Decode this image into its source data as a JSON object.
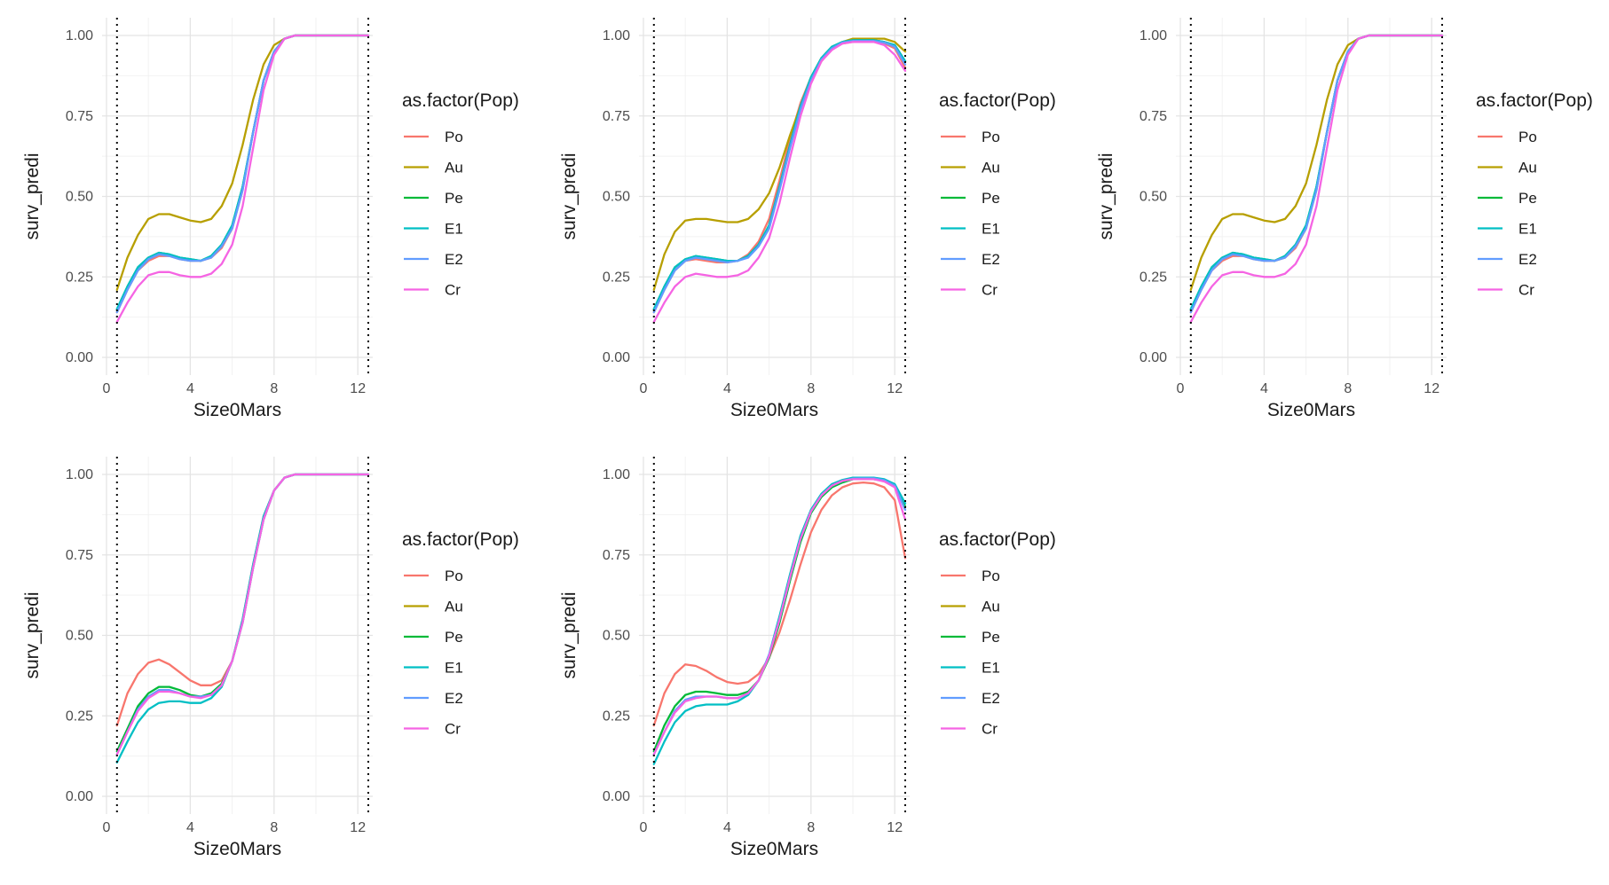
{
  "figure": {
    "legend_title": "as.factor(Pop)",
    "legend_entries": [
      "Po",
      "Au",
      "Pe",
      "E1",
      "E2",
      "Cr"
    ],
    "colors": {
      "Po": "#F8766D",
      "Au": "#B79F00",
      "Pe": "#00BA38",
      "E1": "#00BFC4",
      "E2": "#619CFF",
      "Cr": "#F564E3"
    }
  },
  "chart_data": [
    {
      "type": "line",
      "xlabel": "Size0Mars",
      "ylabel": "surv_predi",
      "xlim": [
        0,
        12.5
      ],
      "ylim": [
        0,
        1
      ],
      "xticks": [
        "0",
        "4",
        "8",
        "12"
      ],
      "yticks": [
        "0.00",
        "0.25",
        "0.50",
        "0.75",
        "1.00"
      ],
      "vlines": [
        0.5,
        12.5
      ],
      "grid": true,
      "legend_position": "right",
      "x": [
        0.5,
        1,
        1.5,
        2,
        2.5,
        3,
        3.5,
        4,
        4.5,
        5,
        5.5,
        6,
        6.5,
        7,
        7.5,
        8,
        8.5,
        9,
        9.5,
        10,
        11,
        12,
        12.5
      ],
      "series": [
        {
          "name": "Po",
          "values": [
            0.14,
            0.21,
            0.27,
            0.3,
            0.315,
            0.315,
            0.305,
            0.3,
            0.3,
            0.31,
            0.34,
            0.4,
            0.52,
            0.7,
            0.86,
            0.95,
            0.99,
            1.0,
            1.0,
            1.0,
            1.0,
            1.0,
            1.0
          ]
        },
        {
          "name": "Au",
          "values": [
            0.21,
            0.31,
            0.38,
            0.43,
            0.445,
            0.445,
            0.435,
            0.425,
            0.42,
            0.43,
            0.47,
            0.54,
            0.66,
            0.8,
            0.91,
            0.97,
            0.99,
            1.0,
            1.0,
            1.0,
            1.0,
            1.0,
            1.0
          ]
        },
        {
          "name": "Pe",
          "values": [
            0.15,
            0.22,
            0.28,
            0.31,
            0.325,
            0.32,
            0.31,
            0.305,
            0.3,
            0.315,
            0.35,
            0.41,
            0.53,
            0.7,
            0.86,
            0.95,
            0.99,
            1.0,
            1.0,
            1.0,
            1.0,
            1.0,
            1.0
          ]
        },
        {
          "name": "E1",
          "values": [
            0.15,
            0.22,
            0.28,
            0.31,
            0.325,
            0.32,
            0.31,
            0.305,
            0.3,
            0.315,
            0.35,
            0.41,
            0.53,
            0.7,
            0.86,
            0.95,
            0.99,
            1.0,
            1.0,
            1.0,
            1.0,
            1.0,
            1.0
          ]
        },
        {
          "name": "E2",
          "values": [
            0.14,
            0.21,
            0.27,
            0.305,
            0.32,
            0.315,
            0.305,
            0.3,
            0.3,
            0.31,
            0.345,
            0.4,
            0.52,
            0.7,
            0.86,
            0.95,
            0.99,
            1.0,
            1.0,
            1.0,
            1.0,
            1.0,
            1.0
          ]
        },
        {
          "name": "Cr",
          "values": [
            0.11,
            0.17,
            0.22,
            0.255,
            0.265,
            0.265,
            0.255,
            0.25,
            0.25,
            0.26,
            0.29,
            0.35,
            0.47,
            0.65,
            0.83,
            0.94,
            0.99,
            1.0,
            1.0,
            1.0,
            1.0,
            1.0,
            1.0
          ]
        }
      ]
    },
    {
      "type": "line",
      "xlabel": "Size0Mars",
      "ylabel": "surv_predi",
      "xlim": [
        0,
        12.5
      ],
      "ylim": [
        0,
        1
      ],
      "xticks": [
        "0",
        "4",
        "8",
        "12"
      ],
      "yticks": [
        "0.00",
        "0.25",
        "0.50",
        "0.75",
        "1.00"
      ],
      "vlines": [
        0.5,
        12.5
      ],
      "grid": true,
      "legend_position": "right",
      "x": [
        0.5,
        1,
        1.5,
        2,
        2.5,
        3,
        3.5,
        4,
        4.5,
        5,
        5.5,
        6,
        6.5,
        7,
        7.5,
        8,
        8.5,
        9,
        9.5,
        10,
        10.5,
        11,
        11.5,
        12,
        12.5
      ],
      "series": [
        {
          "name": "Po",
          "values": [
            0.14,
            0.21,
            0.27,
            0.3,
            0.305,
            0.3,
            0.295,
            0.295,
            0.3,
            0.32,
            0.36,
            0.43,
            0.55,
            0.68,
            0.79,
            0.87,
            0.93,
            0.96,
            0.975,
            0.98,
            0.98,
            0.98,
            0.975,
            0.96,
            0.9
          ]
        },
        {
          "name": "Au",
          "values": [
            0.21,
            0.32,
            0.39,
            0.425,
            0.43,
            0.43,
            0.425,
            0.42,
            0.42,
            0.43,
            0.46,
            0.51,
            0.59,
            0.69,
            0.78,
            0.86,
            0.92,
            0.96,
            0.98,
            0.99,
            0.99,
            0.99,
            0.99,
            0.98,
            0.95
          ]
        },
        {
          "name": "Pe",
          "values": [
            0.15,
            0.22,
            0.28,
            0.305,
            0.315,
            0.31,
            0.305,
            0.3,
            0.3,
            0.315,
            0.35,
            0.41,
            0.53,
            0.66,
            0.78,
            0.87,
            0.93,
            0.965,
            0.98,
            0.985,
            0.985,
            0.985,
            0.98,
            0.97,
            0.92
          ]
        },
        {
          "name": "E1",
          "values": [
            0.15,
            0.22,
            0.28,
            0.305,
            0.315,
            0.31,
            0.305,
            0.3,
            0.3,
            0.315,
            0.35,
            0.41,
            0.53,
            0.66,
            0.78,
            0.87,
            0.93,
            0.965,
            0.98,
            0.985,
            0.985,
            0.985,
            0.98,
            0.97,
            0.92
          ]
        },
        {
          "name": "E2",
          "values": [
            0.14,
            0.21,
            0.27,
            0.3,
            0.31,
            0.305,
            0.3,
            0.295,
            0.3,
            0.31,
            0.345,
            0.4,
            0.52,
            0.65,
            0.77,
            0.86,
            0.925,
            0.96,
            0.978,
            0.983,
            0.983,
            0.983,
            0.978,
            0.965,
            0.91
          ]
        },
        {
          "name": "Cr",
          "values": [
            0.11,
            0.17,
            0.22,
            0.25,
            0.26,
            0.255,
            0.25,
            0.25,
            0.255,
            0.27,
            0.31,
            0.37,
            0.48,
            0.62,
            0.75,
            0.85,
            0.92,
            0.955,
            0.975,
            0.98,
            0.98,
            0.98,
            0.97,
            0.94,
            0.89
          ]
        }
      ]
    },
    {
      "type": "line",
      "xlabel": "Size0Mars",
      "ylabel": "surv_predi",
      "xlim": [
        0,
        12.5
      ],
      "ylim": [
        0,
        1
      ],
      "xticks": [
        "0",
        "4",
        "8",
        "12"
      ],
      "yticks": [
        "0.00",
        "0.25",
        "0.50",
        "0.75",
        "1.00"
      ],
      "vlines": [
        0.5,
        12.5
      ],
      "grid": true,
      "legend_position": "right",
      "x": [
        0.5,
        1,
        1.5,
        2,
        2.5,
        3,
        3.5,
        4,
        4.5,
        5,
        5.5,
        6,
        6.5,
        7,
        7.5,
        8,
        8.5,
        9,
        9.5,
        10,
        11,
        12,
        12.5
      ],
      "series": [
        {
          "name": "Po",
          "values": [
            0.14,
            0.21,
            0.27,
            0.3,
            0.315,
            0.315,
            0.305,
            0.3,
            0.3,
            0.31,
            0.34,
            0.4,
            0.52,
            0.7,
            0.86,
            0.95,
            0.99,
            1.0,
            1.0,
            1.0,
            1.0,
            1.0,
            1.0
          ]
        },
        {
          "name": "Au",
          "values": [
            0.21,
            0.31,
            0.38,
            0.43,
            0.445,
            0.445,
            0.435,
            0.425,
            0.42,
            0.43,
            0.47,
            0.54,
            0.66,
            0.8,
            0.91,
            0.97,
            0.99,
            1.0,
            1.0,
            1.0,
            1.0,
            1.0,
            1.0
          ]
        },
        {
          "name": "Pe",
          "values": [
            0.15,
            0.22,
            0.28,
            0.31,
            0.325,
            0.32,
            0.31,
            0.305,
            0.3,
            0.315,
            0.35,
            0.41,
            0.53,
            0.7,
            0.86,
            0.95,
            0.99,
            1.0,
            1.0,
            1.0,
            1.0,
            1.0,
            1.0
          ]
        },
        {
          "name": "E1",
          "values": [
            0.15,
            0.22,
            0.28,
            0.31,
            0.325,
            0.32,
            0.31,
            0.305,
            0.3,
            0.315,
            0.35,
            0.41,
            0.53,
            0.7,
            0.86,
            0.95,
            0.99,
            1.0,
            1.0,
            1.0,
            1.0,
            1.0,
            1.0
          ]
        },
        {
          "name": "E2",
          "values": [
            0.14,
            0.21,
            0.27,
            0.305,
            0.32,
            0.315,
            0.305,
            0.3,
            0.3,
            0.31,
            0.345,
            0.4,
            0.52,
            0.7,
            0.86,
            0.95,
            0.99,
            1.0,
            1.0,
            1.0,
            1.0,
            1.0,
            1.0
          ]
        },
        {
          "name": "Cr",
          "values": [
            0.11,
            0.17,
            0.22,
            0.255,
            0.265,
            0.265,
            0.255,
            0.25,
            0.25,
            0.26,
            0.29,
            0.35,
            0.47,
            0.65,
            0.83,
            0.94,
            0.99,
            1.0,
            1.0,
            1.0,
            1.0,
            1.0,
            1.0
          ]
        }
      ]
    },
    {
      "type": "line",
      "xlabel": "Size0Mars",
      "ylabel": "surv_predi",
      "xlim": [
        0,
        12.5
      ],
      "ylim": [
        0,
        1
      ],
      "xticks": [
        "0",
        "4",
        "8",
        "12"
      ],
      "yticks": [
        "0.00",
        "0.25",
        "0.50",
        "0.75",
        "1.00"
      ],
      "vlines": [
        0.5,
        12.5
      ],
      "grid": true,
      "legend_position": "right",
      "x": [
        0.5,
        1,
        1.5,
        2,
        2.5,
        3,
        3.5,
        4,
        4.5,
        5,
        5.5,
        6,
        6.5,
        7,
        7.5,
        8,
        8.5,
        9,
        9.5,
        10,
        11,
        12,
        12.5
      ],
      "series": [
        {
          "name": "Po",
          "values": [
            0.22,
            0.32,
            0.38,
            0.415,
            0.425,
            0.41,
            0.385,
            0.36,
            0.345,
            0.345,
            0.36,
            0.42,
            0.55,
            0.72,
            0.87,
            0.95,
            0.99,
            1.0,
            1.0,
            1.0,
            1.0,
            1.0,
            1.0
          ]
        },
        {
          "name": "Pe",
          "values": [
            0.14,
            0.21,
            0.28,
            0.32,
            0.34,
            0.34,
            0.33,
            0.315,
            0.31,
            0.32,
            0.35,
            0.42,
            0.54,
            0.71,
            0.86,
            0.95,
            0.99,
            1.0,
            1.0,
            1.0,
            1.0,
            1.0,
            1.0
          ]
        },
        {
          "name": "E1",
          "values": [
            0.105,
            0.17,
            0.23,
            0.27,
            0.29,
            0.295,
            0.295,
            0.29,
            0.29,
            0.305,
            0.34,
            0.42,
            0.55,
            0.72,
            0.87,
            0.95,
            0.99,
            1.0,
            1.0,
            1.0,
            1.0,
            1.0,
            1.0
          ]
        },
        {
          "name": "E2",
          "values": [
            0.13,
            0.2,
            0.27,
            0.31,
            0.33,
            0.33,
            0.32,
            0.31,
            0.31,
            0.315,
            0.345,
            0.42,
            0.54,
            0.71,
            0.86,
            0.95,
            0.99,
            1.0,
            1.0,
            1.0,
            1.0,
            1.0,
            1.0
          ]
        },
        {
          "name": "Cr",
          "values": [
            0.13,
            0.2,
            0.265,
            0.305,
            0.325,
            0.325,
            0.32,
            0.31,
            0.305,
            0.315,
            0.345,
            0.42,
            0.54,
            0.71,
            0.86,
            0.95,
            0.99,
            1.0,
            1.0,
            1.0,
            1.0,
            1.0,
            1.0
          ]
        }
      ]
    },
    {
      "type": "line",
      "xlabel": "Size0Mars",
      "ylabel": "surv_predi",
      "xlim": [
        0,
        12.5
      ],
      "ylim": [
        0,
        1
      ],
      "xticks": [
        "0",
        "4",
        "8",
        "12"
      ],
      "yticks": [
        "0.00",
        "0.25",
        "0.50",
        "0.75",
        "1.00"
      ],
      "vlines": [
        0.5,
        12.5
      ],
      "grid": true,
      "legend_position": "right",
      "x": [
        0.5,
        1,
        1.5,
        2,
        2.5,
        3,
        3.5,
        4,
        4.5,
        5,
        5.5,
        6,
        6.5,
        7,
        7.5,
        8,
        8.5,
        9,
        9.5,
        10,
        10.5,
        11,
        11.5,
        12,
        12.5
      ],
      "series": [
        {
          "name": "Po",
          "values": [
            0.22,
            0.32,
            0.38,
            0.41,
            0.405,
            0.39,
            0.37,
            0.355,
            0.35,
            0.355,
            0.38,
            0.43,
            0.51,
            0.61,
            0.72,
            0.82,
            0.89,
            0.935,
            0.96,
            0.972,
            0.975,
            0.972,
            0.96,
            0.92,
            0.74
          ]
        },
        {
          "name": "Pe",
          "values": [
            0.14,
            0.22,
            0.28,
            0.315,
            0.325,
            0.325,
            0.32,
            0.315,
            0.315,
            0.325,
            0.36,
            0.43,
            0.54,
            0.67,
            0.79,
            0.88,
            0.93,
            0.96,
            0.975,
            0.985,
            0.985,
            0.985,
            0.98,
            0.965,
            0.9
          ]
        },
        {
          "name": "E1",
          "values": [
            0.1,
            0.17,
            0.23,
            0.265,
            0.28,
            0.285,
            0.285,
            0.285,
            0.295,
            0.315,
            0.36,
            0.44,
            0.56,
            0.69,
            0.81,
            0.89,
            0.94,
            0.97,
            0.983,
            0.99,
            0.99,
            0.99,
            0.985,
            0.97,
            0.91
          ]
        },
        {
          "name": "E2",
          "values": [
            0.13,
            0.2,
            0.265,
            0.3,
            0.31,
            0.31,
            0.31,
            0.305,
            0.305,
            0.32,
            0.36,
            0.44,
            0.55,
            0.68,
            0.8,
            0.885,
            0.935,
            0.965,
            0.98,
            0.987,
            0.988,
            0.988,
            0.982,
            0.965,
            0.89
          ]
        },
        {
          "name": "Cr",
          "values": [
            0.13,
            0.2,
            0.26,
            0.295,
            0.305,
            0.31,
            0.31,
            0.305,
            0.305,
            0.32,
            0.36,
            0.435,
            0.55,
            0.68,
            0.8,
            0.885,
            0.935,
            0.965,
            0.98,
            0.985,
            0.985,
            0.985,
            0.978,
            0.96,
            0.86
          ]
        }
      ]
    }
  ]
}
